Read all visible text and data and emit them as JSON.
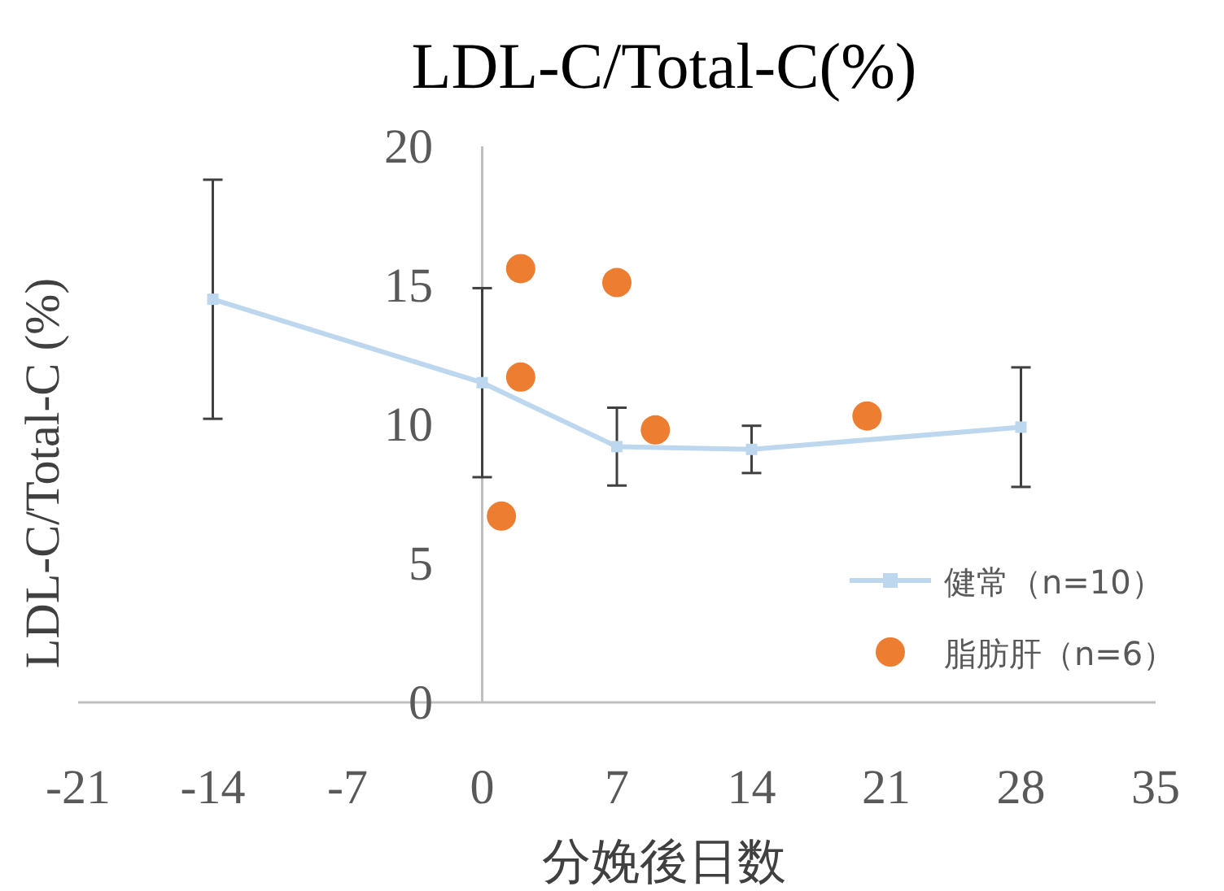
{
  "chart_data": {
    "type": "line",
    "title": "LDL-C/Total-C(%)",
    "xlabel": "分娩後日数",
    "ylabel": "LDL-C/Total-C (%)",
    "xlim": [
      -21,
      35
    ],
    "xticks": [
      -21,
      -14,
      -7,
      0,
      7,
      14,
      21,
      28,
      35
    ],
    "ylim": [
      0,
      20
    ],
    "yticks": [
      0,
      5,
      10,
      15,
      20
    ],
    "legend": "bottom right",
    "series": [
      {
        "name": "健常（n=10）",
        "type": "line",
        "marker": "square",
        "color": "#bdd7ee",
        "x": [
          -14,
          0,
          7,
          14,
          28
        ],
        "values": [
          14.5,
          11.5,
          9.2,
          9.1,
          9.9
        ],
        "errors": [
          4.3,
          3.4,
          1.4,
          0.85,
          2.15
        ]
      },
      {
        "name": "脂肪肝（n=6）",
        "type": "scatter",
        "marker": "circle",
        "color": "#ed7d31",
        "x": [
          2,
          2,
          1,
          7,
          9,
          20
        ],
        "values": [
          15.6,
          11.7,
          6.7,
          15.1,
          9.8,
          10.3
        ]
      }
    ]
  }
}
